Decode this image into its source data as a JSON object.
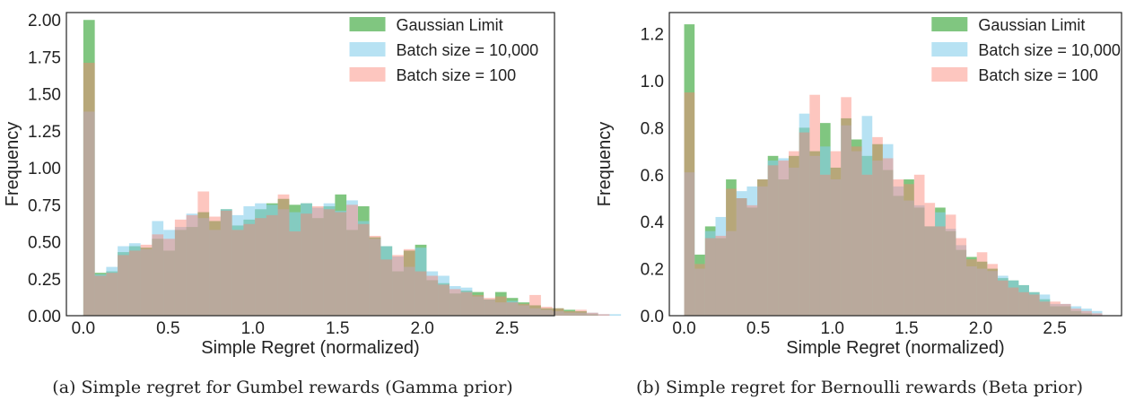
{
  "chart_data": [
    {
      "type": "histogram",
      "xlabel": "Simple Regret (normalized)",
      "ylabel": "Frequency",
      "xlim": [
        -0.1,
        2.78
      ],
      "ylim": [
        0,
        2.05
      ],
      "xticks": [
        0.0,
        0.5,
        1.0,
        1.5,
        2.0,
        2.5
      ],
      "xtick_labels": [
        "0.0",
        "0.5",
        "1.0",
        "1.5",
        "2.0",
        "2.5"
      ],
      "yticks": [
        0,
        0.25,
        0.5,
        0.75,
        1.0,
        1.25,
        1.5,
        1.75,
        2.0
      ],
      "ytick_labels": [
        "0.00",
        "0.25",
        "0.50",
        "0.75",
        "1.00",
        "1.25",
        "1.50",
        "1.75",
        "2.00"
      ],
      "legend_position": "top-right",
      "grid": false,
      "caption": "(a) Simple regret for Gumbel rewards (Gamma prior)",
      "series": [
        {
          "name": "Gaussian Limit",
          "color": "#2ca02c",
          "bin_start": 0.0,
          "bin_width": 0.0675,
          "values": [
            2.0,
            0.29,
            0.3,
            0.43,
            0.47,
            0.46,
            0.52,
            0.44,
            0.58,
            0.6,
            0.7,
            0.64,
            0.72,
            0.61,
            0.65,
            0.72,
            0.76,
            0.79,
            0.75,
            0.76,
            0.66,
            0.74,
            0.82,
            0.58,
            0.74,
            0.53,
            0.47,
            0.3,
            0.44,
            0.48,
            0.24,
            0.22,
            0.15,
            0.17,
            0.16,
            0.11,
            0.16,
            0.12,
            0.09,
            0.07,
            0.05,
            0.05,
            0.04,
            0.03,
            0.01,
            0.0,
            0.0
          ]
        },
        {
          "name": "Batch size = 10,000",
          "color": "#87ceeb",
          "bin_start": 0.0,
          "bin_width": 0.0675,
          "values": [
            1.38,
            0.28,
            0.33,
            0.47,
            0.49,
            0.45,
            0.64,
            0.58,
            0.6,
            0.69,
            0.66,
            0.58,
            0.72,
            0.68,
            0.74,
            0.76,
            0.75,
            0.72,
            0.7,
            0.76,
            0.73,
            0.76,
            0.71,
            0.78,
            0.64,
            0.52,
            0.47,
            0.4,
            0.33,
            0.46,
            0.3,
            0.27,
            0.2,
            0.19,
            0.13,
            0.11,
            0.09,
            0.1,
            0.07,
            0.05,
            0.04,
            0.03,
            0.02,
            0.02,
            0.02,
            0.01,
            0.01
          ]
        },
        {
          "name": "Batch size = 100",
          "color": "#fa8072",
          "bin_start": 0.0,
          "bin_width": 0.0675,
          "values": [
            1.71,
            0.27,
            0.29,
            0.41,
            0.44,
            0.48,
            0.55,
            0.52,
            0.65,
            0.68,
            0.84,
            0.67,
            0.71,
            0.58,
            0.62,
            0.66,
            0.68,
            0.82,
            0.57,
            0.69,
            0.74,
            0.72,
            0.7,
            0.75,
            0.62,
            0.54,
            0.38,
            0.41,
            0.45,
            0.3,
            0.27,
            0.21,
            0.18,
            0.16,
            0.14,
            0.12,
            0.13,
            0.09,
            0.08,
            0.14,
            0.06,
            0.05,
            0.03,
            0.04,
            0.02,
            0.01,
            0.0
          ]
        }
      ]
    },
    {
      "type": "histogram",
      "xlabel": "Simple Regret (normalized)",
      "ylabel": "Frequency",
      "xlim": [
        -0.1,
        2.95
      ],
      "ylim": [
        0,
        1.29
      ],
      "xticks": [
        0.0,
        0.5,
        1.0,
        1.5,
        2.0,
        2.5
      ],
      "xtick_labels": [
        "0.0",
        "0.5",
        "1.0",
        "1.5",
        "2.0",
        "2.5"
      ],
      "yticks": [
        0,
        0.2,
        0.4,
        0.6,
        0.8,
        1.0,
        1.2
      ],
      "ytick_labels": [
        "0.0",
        "0.2",
        "0.4",
        "0.6",
        "0.8",
        "1.0",
        "1.2"
      ],
      "legend_position": "top-right",
      "grid": false,
      "caption": "(b) Simple regret for Bernoulli rewards (Beta prior)",
      "series": [
        {
          "name": "Gaussian Limit",
          "color": "#2ca02c",
          "bin_start": 0.0,
          "bin_width": 0.0705,
          "values": [
            1.24,
            0.26,
            0.38,
            0.33,
            0.58,
            0.5,
            0.46,
            0.58,
            0.68,
            0.58,
            0.68,
            0.8,
            0.7,
            0.82,
            0.63,
            0.84,
            0.75,
            0.68,
            0.73,
            0.62,
            0.51,
            0.58,
            0.46,
            0.38,
            0.46,
            0.36,
            0.28,
            0.25,
            0.23,
            0.2,
            0.16,
            0.15,
            0.13,
            0.1,
            0.07,
            0.04,
            0.04,
            0.02,
            0.01,
            0.0
          ]
        },
        {
          "name": "Batch size = 10,000",
          "color": "#87ceeb",
          "bin_start": 0.0,
          "bin_width": 0.0705,
          "values": [
            0.61,
            0.2,
            0.36,
            0.42,
            0.36,
            0.53,
            0.55,
            0.55,
            0.66,
            0.67,
            0.63,
            0.86,
            0.68,
            0.72,
            0.58,
            0.81,
            0.7,
            0.85,
            0.66,
            0.73,
            0.55,
            0.49,
            0.47,
            0.38,
            0.44,
            0.37,
            0.3,
            0.21,
            0.2,
            0.19,
            0.17,
            0.15,
            0.13,
            0.1,
            0.09,
            0.05,
            0.05,
            0.04,
            0.03,
            0.02
          ]
        },
        {
          "name": "Batch size = 100",
          "color": "#fa8072",
          "bin_start": 0.0,
          "bin_width": 0.0705,
          "values": [
            0.95,
            0.22,
            0.33,
            0.34,
            0.54,
            0.5,
            0.47,
            0.58,
            0.64,
            0.66,
            0.7,
            0.78,
            0.94,
            0.6,
            0.7,
            0.93,
            0.72,
            0.6,
            0.76,
            0.67,
            0.58,
            0.56,
            0.6,
            0.48,
            0.38,
            0.43,
            0.33,
            0.24,
            0.27,
            0.22,
            0.15,
            0.12,
            0.1,
            0.09,
            0.06,
            0.06,
            0.05,
            0.03,
            0.02,
            0.01
          ]
        }
      ]
    }
  ]
}
